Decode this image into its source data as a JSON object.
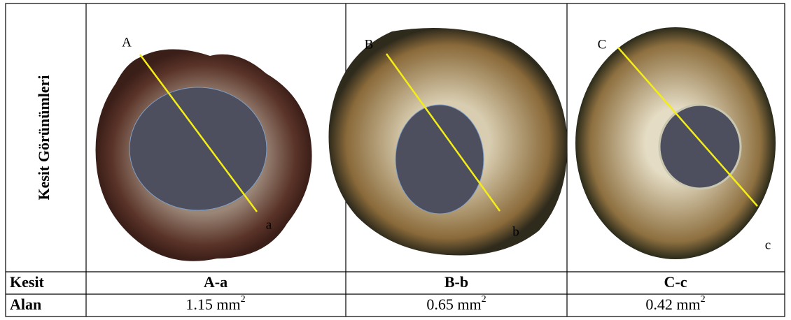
{
  "header": {
    "title": "Kesit Görünümleri"
  },
  "images": [
    {
      "start": "A",
      "end": "a"
    },
    {
      "start": "B",
      "end": "b"
    },
    {
      "start": "C",
      "end": "c"
    }
  ],
  "table": {
    "rows": [
      [
        "Kesit",
        "A-a",
        "B-b",
        "C-c"
      ],
      [
        "Alan",
        {
          "text": "1.15 mm",
          "superscript": "2"
        },
        {
          "text": "0.65 mm",
          "superscript": "2"
        },
        {
          "text": "0.42 mm",
          "superscript": "2"
        }
      ]
    ]
  }
}
